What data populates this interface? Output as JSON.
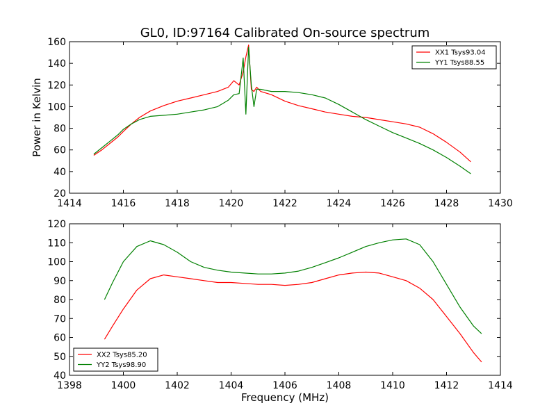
{
  "figure": {
    "title": "GL0, ID:97164 Calibrated On-source spectrum"
  },
  "chart_data": [
    {
      "type": "line",
      "title": "GL0, ID:97164 Calibrated On-source spectrum",
      "xlabel": "",
      "ylabel": "Power in Kelvin",
      "xlim": [
        1414,
        1430
      ],
      "ylim": [
        20,
        160
      ],
      "xticks": [
        1414,
        1416,
        1418,
        1420,
        1422,
        1424,
        1426,
        1428,
        1430
      ],
      "yticks": [
        20,
        40,
        60,
        80,
        100,
        120,
        140,
        160
      ],
      "grid": false,
      "legend_position": "top-right",
      "series": [
        {
          "name": "XX1 Tsys93.04",
          "color": "#ff0000",
          "x": [
            1414.9,
            1415.2,
            1415.5,
            1415.8,
            1416.0,
            1416.3,
            1416.6,
            1417.0,
            1417.5,
            1418.0,
            1418.5,
            1419.0,
            1419.5,
            1419.9,
            1420.1,
            1420.3,
            1420.45,
            1420.55,
            1420.65,
            1420.75,
            1420.85,
            1420.95,
            1421.1,
            1421.5,
            1422.0,
            1422.5,
            1423.0,
            1423.5,
            1424.0,
            1424.5,
            1425.0,
            1425.5,
            1426.0,
            1426.5,
            1427.0,
            1427.5,
            1428.0,
            1428.5,
            1428.9
          ],
          "y": [
            55,
            60,
            66,
            72,
            77,
            84,
            90,
            96,
            101,
            105,
            108,
            111,
            114,
            118,
            124,
            120,
            132,
            146,
            157,
            116,
            114,
            118,
            114,
            111,
            105,
            101,
            98,
            95,
            93,
            91,
            90,
            88,
            86,
            84,
            81,
            75,
            67,
            58,
            49
          ]
        },
        {
          "name": "YY1 Tsys88.55",
          "color": "#008000",
          "x": [
            1414.9,
            1415.2,
            1415.5,
            1415.8,
            1416.0,
            1416.3,
            1416.6,
            1417.0,
            1417.5,
            1418.0,
            1418.5,
            1419.0,
            1419.5,
            1419.9,
            1420.1,
            1420.3,
            1420.45,
            1420.55,
            1420.65,
            1420.75,
            1420.85,
            1420.95,
            1421.1,
            1421.5,
            1422.0,
            1422.5,
            1423.0,
            1423.5,
            1424.0,
            1424.5,
            1425.0,
            1425.5,
            1426.0,
            1426.5,
            1427.0,
            1427.5,
            1428.0,
            1428.5,
            1428.9
          ],
          "y": [
            56,
            62,
            68,
            74,
            79,
            84,
            88,
            91,
            92,
            93,
            95,
            97,
            100,
            106,
            111,
            112,
            145,
            93,
            155,
            120,
            100,
            116,
            116,
            114,
            114,
            113,
            111,
            108,
            102,
            95,
            88,
            82,
            76,
            71,
            66,
            60,
            53,
            45,
            38
          ]
        }
      ]
    },
    {
      "type": "line",
      "title": "",
      "xlabel": "Frequency (MHz)",
      "ylabel": "",
      "xlim": [
        1398,
        1414
      ],
      "ylim": [
        40,
        120
      ],
      "xticks": [
        1398,
        1400,
        1402,
        1404,
        1406,
        1408,
        1410,
        1412,
        1414
      ],
      "yticks": [
        40,
        50,
        60,
        70,
        80,
        90,
        100,
        110,
        120
      ],
      "grid": false,
      "legend_position": "bottom-left",
      "series": [
        {
          "name": "XX2 Tsys85.20",
          "color": "#ff0000",
          "x": [
            1399.3,
            1399.6,
            1400.0,
            1400.5,
            1401.0,
            1401.5,
            1402.0,
            1402.5,
            1403.0,
            1403.5,
            1404.0,
            1404.5,
            1405.0,
            1405.5,
            1406.0,
            1406.5,
            1407.0,
            1407.5,
            1408.0,
            1408.5,
            1409.0,
            1409.5,
            1410.0,
            1410.5,
            1411.0,
            1411.5,
            1412.0,
            1412.5,
            1413.0,
            1413.3
          ],
          "y": [
            59,
            66,
            75,
            85,
            91,
            93,
            92,
            91,
            90,
            89,
            89,
            88.5,
            88,
            88,
            87.5,
            88,
            89,
            91,
            93,
            94,
            94.5,
            94,
            92,
            90,
            86,
            80,
            71,
            62,
            52,
            47
          ]
        },
        {
          "name": "YY2 Tsys98.90",
          "color": "#008000",
          "x": [
            1399.3,
            1399.6,
            1400.0,
            1400.5,
            1401.0,
            1401.5,
            1402.0,
            1402.5,
            1403.0,
            1403.5,
            1404.0,
            1404.5,
            1405.0,
            1405.5,
            1406.0,
            1406.5,
            1407.0,
            1407.5,
            1408.0,
            1408.5,
            1409.0,
            1409.5,
            1410.0,
            1410.5,
            1411.0,
            1411.5,
            1412.0,
            1412.5,
            1413.0,
            1413.3
          ],
          "y": [
            80,
            89,
            100,
            108,
            111,
            109,
            105,
            100,
            97,
            95.5,
            94.5,
            94,
            93.5,
            93.5,
            94,
            95,
            97,
            99.5,
            102,
            105,
            108,
            110,
            111.5,
            112,
            109,
            100,
            88,
            76,
            66,
            62
          ]
        }
      ]
    }
  ]
}
